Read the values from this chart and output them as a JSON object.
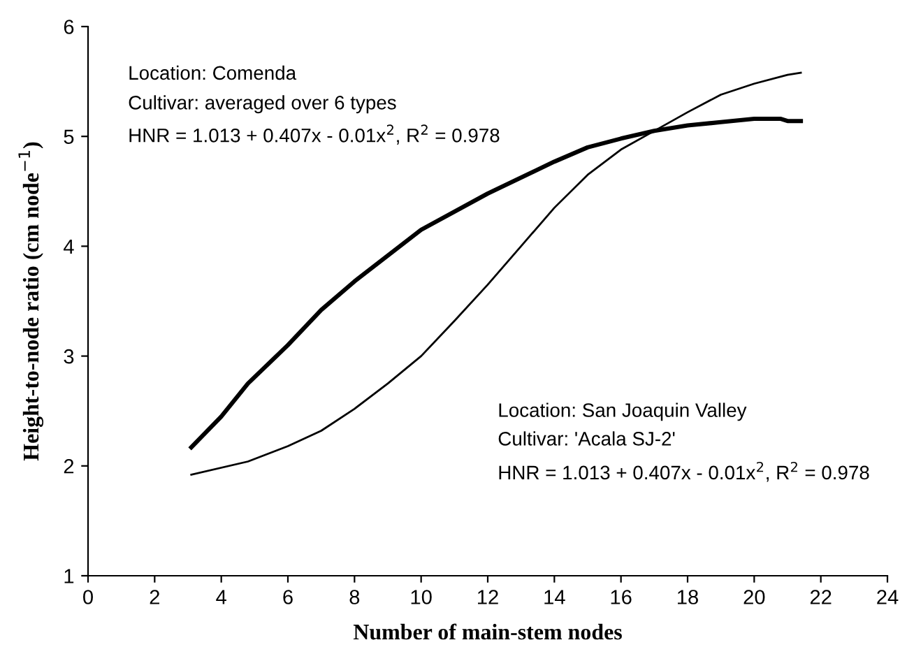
{
  "chart_data": {
    "type": "line",
    "xlabel": "Number of main-stem nodes",
    "ylabel": "Height-to-node ratio (cm node$^{−1}$)",
    "xlim": [
      0,
      24
    ],
    "xticks": [
      0,
      2,
      4,
      6,
      8,
      10,
      12,
      14,
      16,
      18,
      20,
      22,
      24
    ],
    "ylim": [
      1,
      6
    ],
    "yticks": [
      1,
      2,
      3,
      4,
      5,
      6
    ],
    "grid": false,
    "legend": false,
    "marker": "none",
    "line_style": "solid",
    "series": [
      {
        "color": "#000000",
        "x": [
          3.1,
          4,
          4.8,
          6,
          7,
          8,
          10,
          12,
          14,
          15,
          16,
          17,
          18,
          19,
          20,
          20.8,
          21,
          21.4
        ],
        "values": [
          2.17,
          2.45,
          2.75,
          3.1,
          3.42,
          3.68,
          4.15,
          4.48,
          4.77,
          4.9,
          4.98,
          5.05,
          5.1,
          5.13,
          5.16,
          5.16,
          5.14,
          5.14
        ]
      },
      {
        "color": "#000000",
        "x": [
          3.1,
          4.8,
          6,
          7,
          8,
          9,
          10,
          11,
          12,
          13,
          14,
          15,
          16,
          17,
          18,
          19,
          20,
          21,
          21.4
        ],
        "values": [
          1.92,
          2.04,
          2.18,
          2.32,
          2.52,
          2.75,
          3.0,
          3.32,
          3.65,
          4.0,
          4.35,
          4.65,
          4.88,
          5.05,
          5.22,
          5.38,
          5.48,
          5.56,
          5.58
        ]
      }
    ],
    "annotations": [
      "Location: Comenda",
      "Cultivar: averaged over 6 types",
      "HNR = 1.013 + 0.407x - 0.01x$^{2}$, R$^{2}$ = 0.978",
      "Location: San Joaquin Valley",
      "Cultivar: 'Acala SJ-2'",
      "HNR = 1.013 + 0.407x - 0.01x$^{2}$, R$^{2}$ = 0.978"
    ]
  }
}
